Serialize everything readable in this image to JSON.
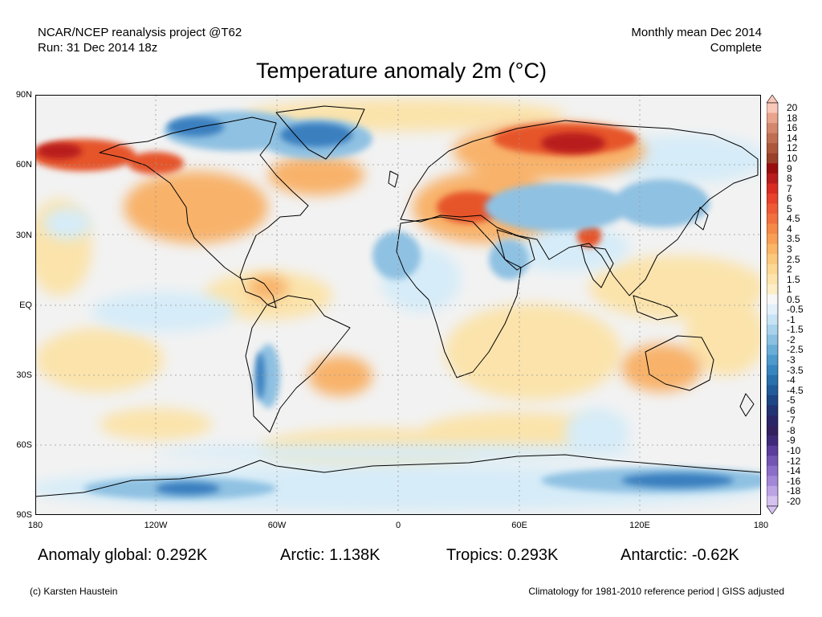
{
  "header": {
    "left_line1": "NCAR/NCEP reanalysis project @T62",
    "left_line2": "Run: 31 Dec 2014 18z",
    "right_line1": "Monthly mean Dec 2014",
    "right_line2": "Complete"
  },
  "title": "Temperature anomaly 2m (°C)",
  "map": {
    "lat_labels": [
      "90N",
      "60N",
      "30N",
      "EQ",
      "30S",
      "60S",
      "90S"
    ],
    "lon_labels": [
      "180",
      "120W",
      "60W",
      "0",
      "60E",
      "120E",
      "180"
    ],
    "colors": {
      "ocean_neutral": "#f2f2f2",
      "warm_light": "#fbe3ab",
      "warm_mid": "#f8b26a",
      "warm_strong": "#e6552b",
      "warm_extreme": "#b81c1c",
      "cool_light": "#d6ecf8",
      "cool_mid": "#8fc1e2",
      "cool_strong": "#3a7fbf",
      "coast": "#000000",
      "grid": "#999999"
    }
  },
  "colorbar": {
    "labels": [
      "20",
      "18",
      "16",
      "14",
      "12",
      "10",
      "9",
      "8",
      "7",
      "6",
      "5",
      "4.5",
      "4",
      "3.5",
      "3",
      "2.5",
      "2",
      "1.5",
      "1",
      "0.5",
      "-0.5",
      "-1",
      "-1.5",
      "-2",
      "-2.5",
      "-3",
      "-3.5",
      "-4",
      "-4.5",
      "-5",
      "-6",
      "-7",
      "-8",
      "-9",
      "-10",
      "-12",
      "-14",
      "-16",
      "-18",
      "-20"
    ],
    "colors": [
      "#f9c8b8",
      "#e8a48c",
      "#d4876c",
      "#c06e52",
      "#ad573b",
      "#9b4129",
      "#9a0d0d",
      "#b81c1c",
      "#d92b22",
      "#e8412c",
      "#ef5a36",
      "#f2703f",
      "#f58948",
      "#f89f55",
      "#fab566",
      "#fbc97c",
      "#fcd894",
      "#fde4ad",
      "#fdeec8",
      "#f7f7f7",
      "#e2f0f9",
      "#c7e3f4",
      "#a9d2ec",
      "#8ac1e2",
      "#6aaed8",
      "#4e9acc",
      "#3886bf",
      "#2a70ad",
      "#215b99",
      "#1c4684",
      "#213372",
      "#292566",
      "#33205f",
      "#3f2a7a",
      "#5a3d9c",
      "#7355b4",
      "#8b6ec7",
      "#a387d6",
      "#bca3e3",
      "#d6c2f0"
    ]
  },
  "stats": {
    "global": "Anomaly global: 0.292K",
    "arctic": "Arctic: 1.138K",
    "tropics": "Tropics: 0.293K",
    "antarctic": "Antarctic: -0.62K"
  },
  "footer": {
    "left": "(c) Karsten Haustein",
    "right": "Climatology for 1981-2010 reference period | GISS adjusted"
  }
}
